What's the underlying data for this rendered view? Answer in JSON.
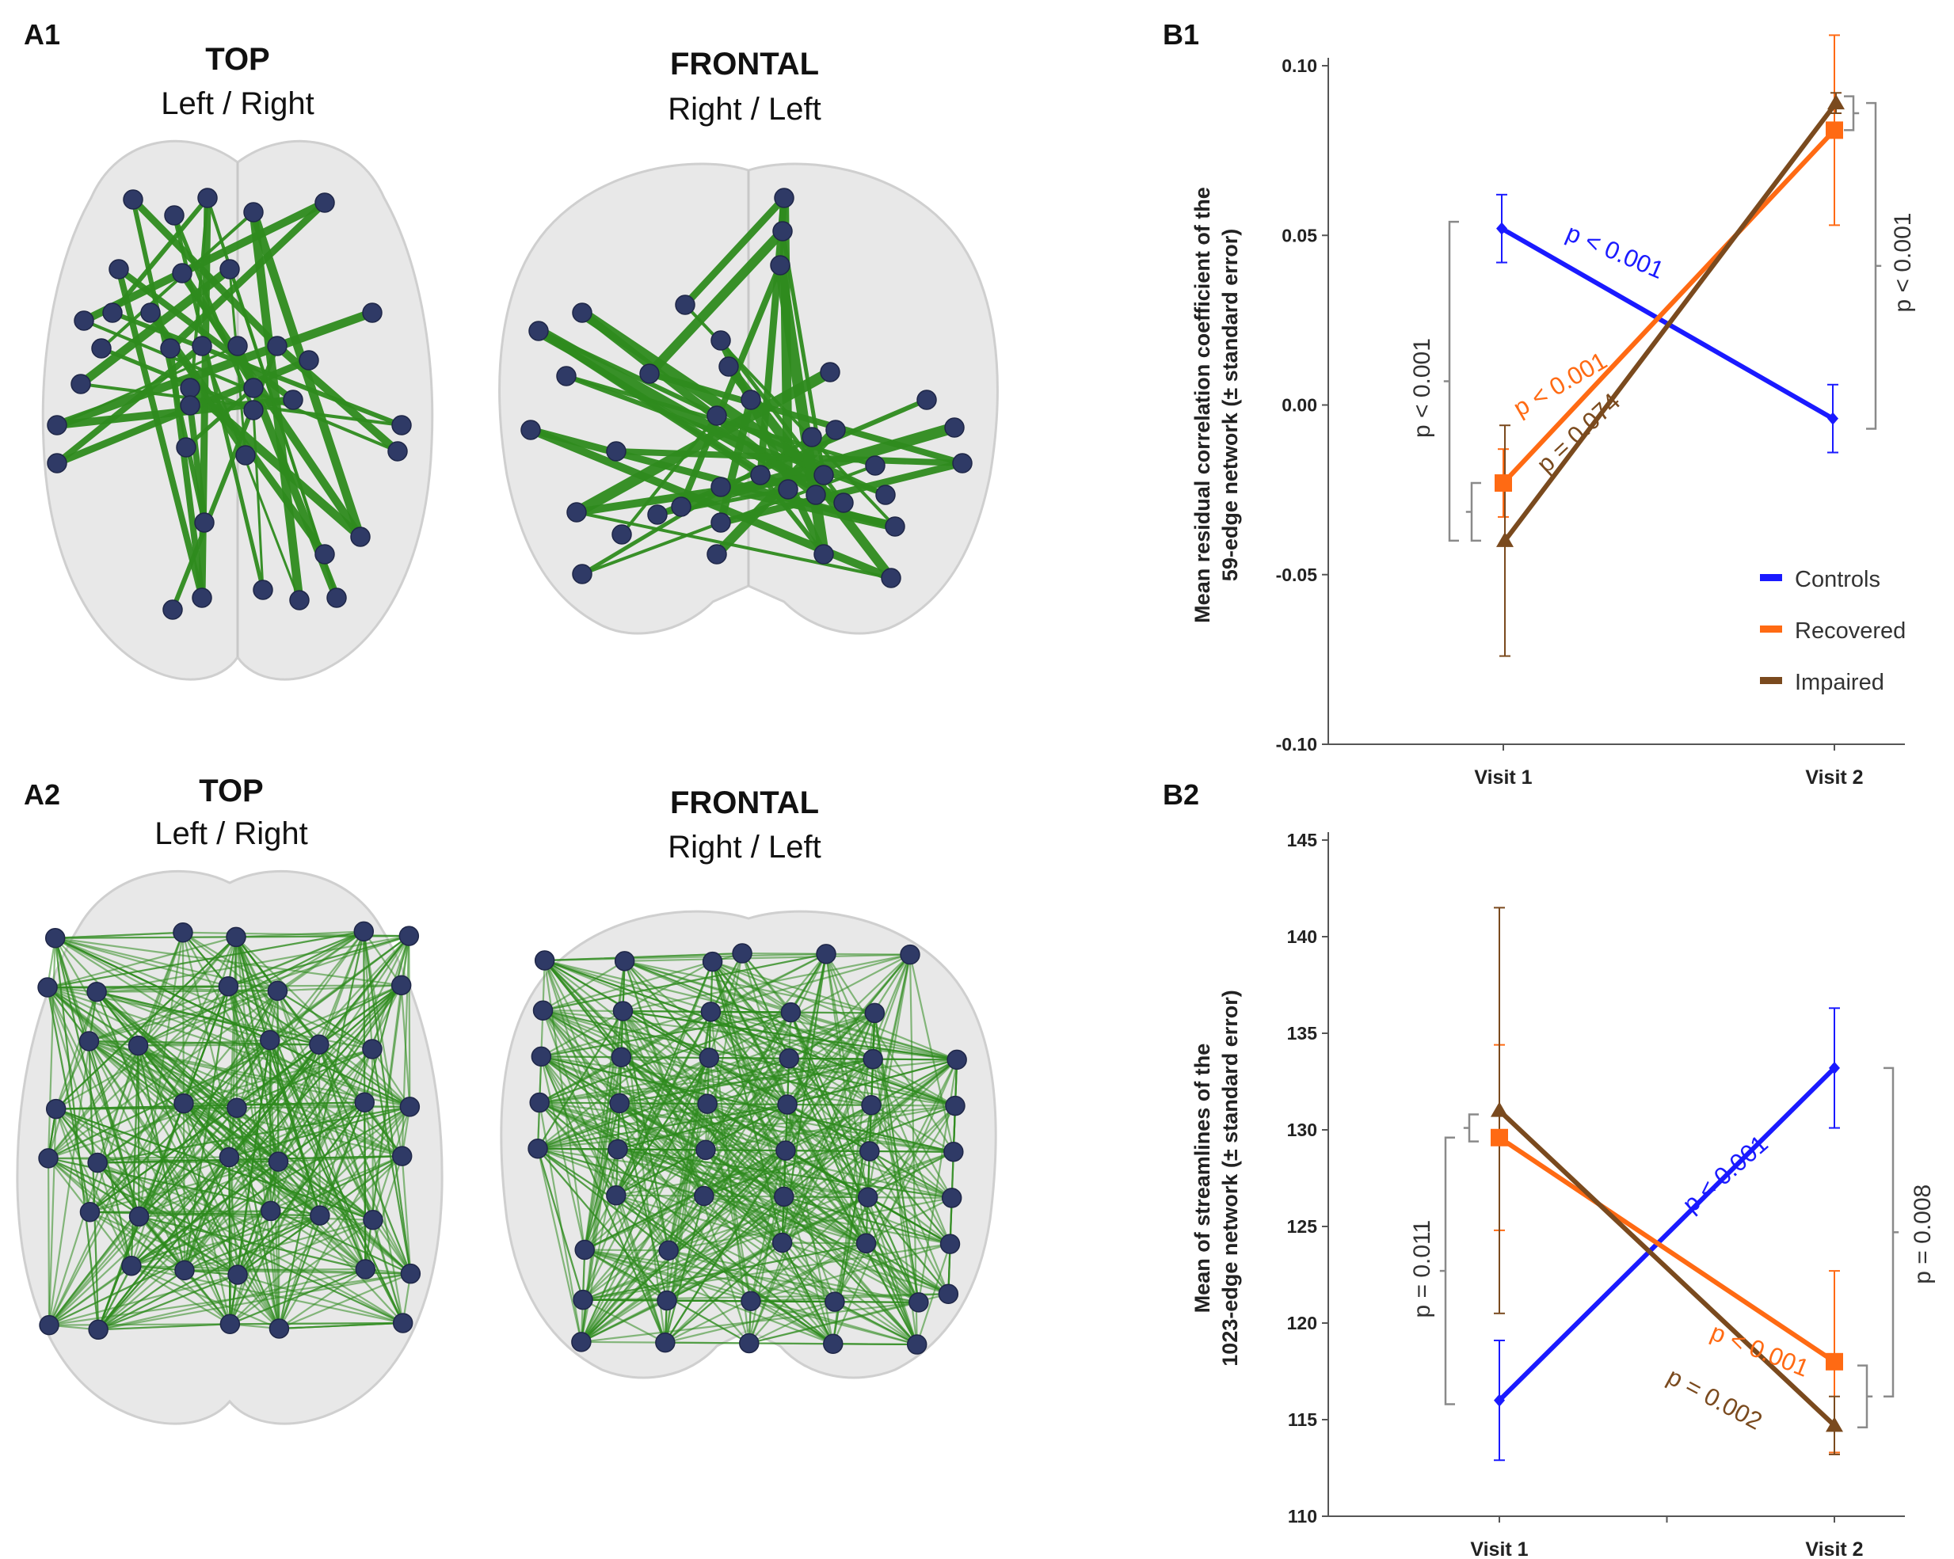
{
  "panels": {
    "a1": {
      "label": "A1",
      "views": [
        {
          "title": "TOP",
          "subtitle": "Left / Right"
        },
        {
          "title": "FRONTAL",
          "subtitle": "Right / Left"
        }
      ]
    },
    "a2": {
      "label": "A2",
      "views": [
        {
          "title": "TOP",
          "subtitle": "Left / Right"
        },
        {
          "title": "FRONTAL",
          "subtitle": "Right / Left"
        }
      ]
    },
    "b1": {
      "label": "B1"
    },
    "b2": {
      "label": "B2"
    }
  },
  "colors": {
    "controls": "#1a1aff",
    "recovered": "#ff6a13",
    "impaired": "#7a4a1e",
    "edge": "#2e8b1e",
    "node": "#2f3a66",
    "brain": "#dcdcdc",
    "bracket": "#8a8a8a",
    "axis": "#555555"
  },
  "chart_data": [
    {
      "id": "b1",
      "type": "line",
      "title": "",
      "xlabel": "",
      "ylabel": "Mean residual correlation coefficient of the 59-edge network (± standard error)",
      "ylabel_lines": [
        "Mean residual correlation coefficient of the",
        "59-edge network (± standard error)"
      ],
      "categories": [
        "Visit 1",
        "Visit 2"
      ],
      "ylim": [
        -0.1,
        0.1
      ],
      "yticks": [
        0.1,
        0.05,
        0.0,
        -0.05,
        -0.1
      ],
      "ytick_labels": [
        "0.10",
        "0.05",
        "0.00",
        "-0.05",
        "-0.10"
      ],
      "legend": [
        "Controls",
        "Recovered",
        "Impaired"
      ],
      "legend_position": "bottom-right",
      "series": [
        {
          "name": "Controls",
          "key": "controls",
          "marker": "diamond",
          "values": [
            0.052,
            -0.004
          ],
          "err": [
            0.01,
            0.01
          ]
        },
        {
          "name": "Recovered",
          "key": "recovered",
          "marker": "square",
          "values": [
            -0.023,
            0.081
          ],
          "err": [
            0.01,
            0.028
          ]
        },
        {
          "name": "Impaired",
          "key": "impaired",
          "marker": "triangle",
          "values": [
            -0.04,
            0.089
          ],
          "err": [
            0.034,
            0.003
          ]
        }
      ],
      "line_annotations": [
        {
          "text": "p < 0.001",
          "key": "controls"
        },
        {
          "text": "p < 0.001",
          "key": "recovered"
        },
        {
          "text": "p = 0.074",
          "key": "impaired"
        }
      ],
      "bracket_annotations": [
        {
          "text": "p < 0.001"
        },
        {
          "text": "p < 0.001"
        }
      ]
    },
    {
      "id": "b2",
      "type": "line",
      "title": "",
      "xlabel": "",
      "ylabel": "Mean of streamlines of the 1023-edge network (± standard error)",
      "ylabel_lines": [
        "Mean of streamlines of the",
        "1023-edge network  (± standard error)"
      ],
      "categories": [
        "Visit 1",
        "Visit 2"
      ],
      "ylim": [
        110,
        145
      ],
      "yticks": [
        145,
        140,
        135,
        130,
        125,
        120,
        115,
        110
      ],
      "ytick_labels": [
        "145",
        "140",
        "135",
        "130",
        "125",
        "120",
        "115",
        "110"
      ],
      "series": [
        {
          "name": "Controls",
          "key": "controls",
          "marker": "diamond",
          "values": [
            116.0,
            133.2
          ],
          "err": [
            3.1,
            3.1
          ]
        },
        {
          "name": "Recovered",
          "key": "recovered",
          "marker": "square",
          "values": [
            129.6,
            118.0
          ],
          "err": [
            4.8,
            4.7
          ]
        },
        {
          "name": "Impaired",
          "key": "impaired",
          "marker": "triangle",
          "values": [
            131.0,
            114.7
          ],
          "err": [
            10.5,
            1.5
          ]
        }
      ],
      "line_annotations": [
        {
          "text": "p < 0.001",
          "key": "controls"
        },
        {
          "text": "p < 0.001",
          "key": "recovered"
        },
        {
          "text": "p = 0.002",
          "key": "impaired"
        }
      ],
      "bracket_annotations": [
        {
          "text": "p = 0.011"
        },
        {
          "text": "p = 0.008"
        }
      ]
    }
  ]
}
